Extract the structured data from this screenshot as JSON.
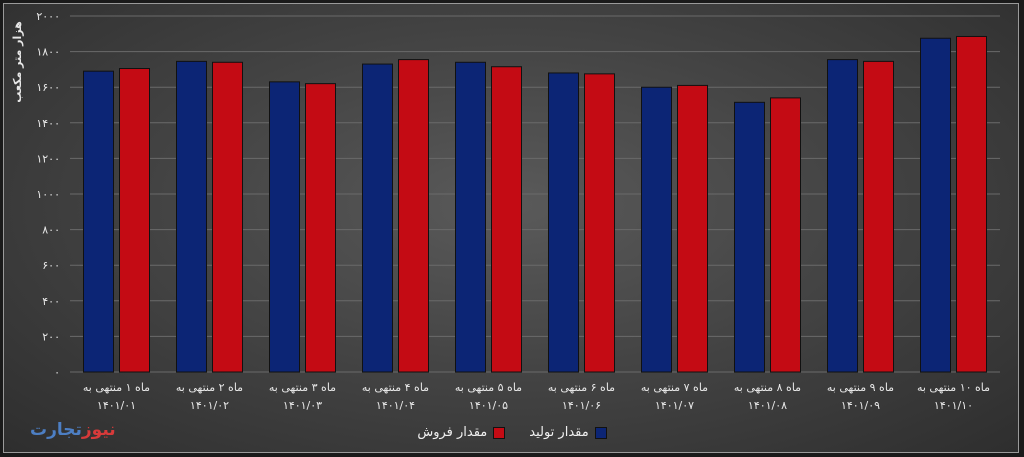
{
  "chart_data": {
    "type": "bar",
    "ylabel": "هزار متر مکعب",
    "ylim": [
      0,
      2000
    ],
    "yticks": [
      "۰",
      "۲۰۰",
      "۴۰۰",
      "۶۰۰",
      "۸۰۰",
      "۱۰۰۰",
      "۱۲۰۰",
      "۱۴۰۰",
      "۱۶۰۰",
      "۱۸۰۰",
      "۲۰۰۰"
    ],
    "ytick_values": [
      0,
      200,
      400,
      600,
      800,
      1000,
      1200,
      1400,
      1600,
      1800,
      2000
    ],
    "categories": [
      [
        "ماه ۱ منتهی به",
        "۱۴۰۱/۰۱"
      ],
      [
        "ماه ۲ منتهی به",
        "۱۴۰۱/۰۲"
      ],
      [
        "ماه ۳ منتهی به",
        "۱۴۰۱/۰۳"
      ],
      [
        "ماه ۴ منتهی به",
        "۱۴۰۱/۰۴"
      ],
      [
        "ماه ۵ منتهی به",
        "۱۴۰۱/۰۵"
      ],
      [
        "ماه ۶ منتهی به",
        "۱۴۰۱/۰۶"
      ],
      [
        "ماه ۷ منتهی به",
        "۱۴۰۱/۰۷"
      ],
      [
        "ماه ۸ منتهی به",
        "۱۴۰۱/۰۸"
      ],
      [
        "ماه ۹ منتهی به",
        "۱۴۰۱/۰۹"
      ],
      [
        "ماه ۱۰ منتهی به",
        "۱۴۰۱/۱۰"
      ]
    ],
    "series": [
      {
        "name": "مقدار تولید",
        "color": "#0c2575",
        "values": [
          1690,
          1745,
          1630,
          1730,
          1740,
          1680,
          1600,
          1515,
          1755,
          1875
        ]
      },
      {
        "name": "مقدار فروش",
        "color": "#c40b14",
        "values": [
          1705,
          1740,
          1620,
          1755,
          1715,
          1675,
          1610,
          1540,
          1745,
          1885
        ]
      }
    ],
    "grid": true,
    "legend_position": "bottom-center"
  },
  "logo": {
    "part1": "تجارت",
    "part2": "نیوز"
  }
}
